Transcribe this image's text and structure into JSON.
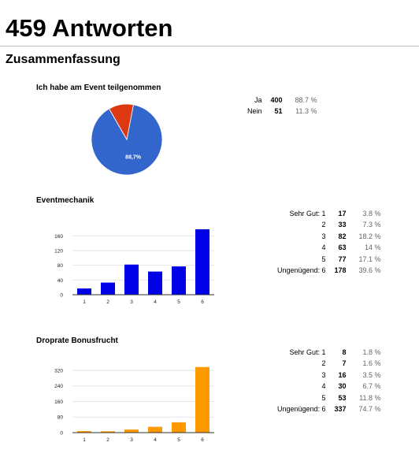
{
  "page": {
    "title": "459 Antworten",
    "section": "Zusammenfassung"
  },
  "q1": {
    "title": "Ich habe am Event teilgenommen",
    "rows": [
      {
        "label": "Ja",
        "count": "400",
        "pct": "88.7 %"
      },
      {
        "label": "Nein",
        "count": "51",
        "pct": "11.3 %"
      }
    ],
    "slice_label": "88,7%"
  },
  "q2": {
    "title": "Eventmechanik",
    "rows": [
      {
        "label": "Sehr Gut: 1",
        "count": "17",
        "pct": "3.8 %"
      },
      {
        "label": "2",
        "count": "33",
        "pct": "7.3 %"
      },
      {
        "label": "3",
        "count": "82",
        "pct": "18.2 %"
      },
      {
        "label": "4",
        "count": "63",
        "pct": "14 %"
      },
      {
        "label": "5",
        "count": "77",
        "pct": "17.1 %"
      },
      {
        "label": "Ungenügend: 6",
        "count": "178",
        "pct": "39.6 %"
      }
    ]
  },
  "q3": {
    "title": "Droprate Bonusfrucht",
    "rows": [
      {
        "label": "Sehr Gut: 1",
        "count": "8",
        "pct": "1.8 %"
      },
      {
        "label": "2",
        "count": "7",
        "pct": "1.6 %"
      },
      {
        "label": "3",
        "count": "16",
        "pct": "3.5 %"
      },
      {
        "label": "4",
        "count": "30",
        "pct": "6.7 %"
      },
      {
        "label": "5",
        "count": "53",
        "pct": "11.8 %"
      },
      {
        "label": "Ungenügend: 6",
        "count": "337",
        "pct": "74.7 %"
      }
    ]
  },
  "chart_data": [
    {
      "type": "pie",
      "categories": [
        "Ja",
        "Nein"
      ],
      "values": [
        400,
        51
      ],
      "colors": [
        "#3366cc",
        "#dc3912"
      ],
      "data_labels": [
        "88,7%"
      ]
    },
    {
      "type": "bar",
      "categories": [
        "1",
        "2",
        "3",
        "4",
        "5",
        "6"
      ],
      "values": [
        17,
        33,
        82,
        63,
        77,
        178
      ],
      "yticks": [
        0,
        40,
        80,
        120,
        160
      ],
      "ylim": [
        0,
        180
      ],
      "color": "#0000e6"
    },
    {
      "type": "bar",
      "categories": [
        "1",
        "2",
        "3",
        "4",
        "5",
        "6"
      ],
      "values": [
        8,
        7,
        16,
        30,
        53,
        337
      ],
      "yticks": [
        0,
        80,
        160,
        240,
        320
      ],
      "ylim": [
        0,
        340
      ],
      "color": "#ff9900"
    }
  ]
}
